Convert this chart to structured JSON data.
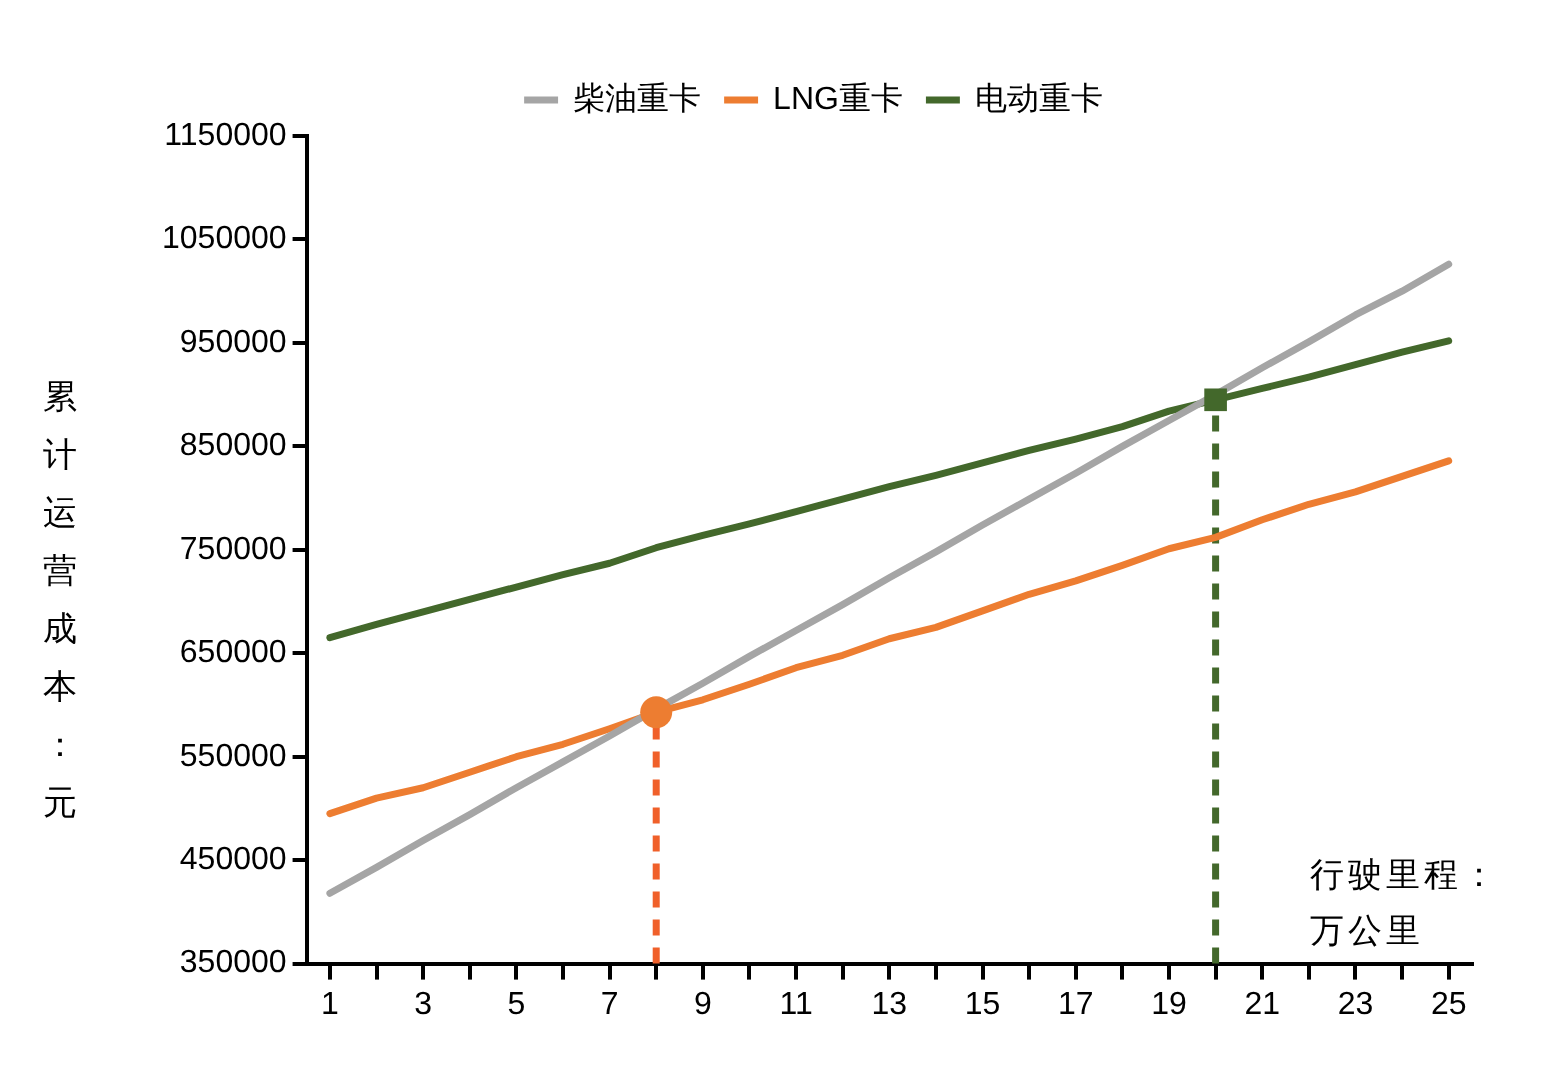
{
  "chart_data": {
    "type": "line",
    "xlabel": "行驶里程：万公里",
    "ylabel": "累计运营成本：元",
    "x": [
      1,
      2,
      3,
      4,
      5,
      6,
      7,
      8,
      9,
      10,
      11,
      12,
      13,
      14,
      15,
      16,
      17,
      18,
      19,
      20,
      21,
      22,
      23,
      24,
      25
    ],
    "series": [
      {
        "name": "柴油重卡",
        "color": "#a5a5a5",
        "values": [
          418000,
          443000,
          469000,
          494000,
          520000,
          545000,
          570000,
          596000,
          621000,
          647000,
          672000,
          697000,
          723000,
          748000,
          774000,
          799000,
          824000,
          850000,
          875000,
          900000,
          926000,
          951000,
          977000,
          1000000,
          1026000
        ]
      },
      {
        "name": "LNG重卡",
        "color": "#ed7d31",
        "values": [
          495000,
          510000,
          520000,
          535000,
          550000,
          562000,
          577000,
          593000,
          605000,
          620000,
          636000,
          648000,
          664000,
          675000,
          691000,
          707000,
          720000,
          735000,
          751000,
          762000,
          779000,
          794000,
          806000,
          821000,
          836000
        ]
      },
      {
        "name": "电动重卡",
        "color": "#43682b",
        "values": [
          665000,
          678000,
          690000,
          702000,
          714000,
          726000,
          737000,
          752000,
          764000,
          775000,
          787000,
          799000,
          811000,
          822000,
          834000,
          846000,
          857000,
          869000,
          884000,
          895000,
          906000,
          917000,
          929000,
          941000,
          952000
        ]
      },
      {
        "type": "scatter",
        "color": "#ed7d31",
        "marker": "circle",
        "x": [
          8
        ],
        "values": [
          593000
        ]
      },
      {
        "type": "scatter",
        "color": "#43682b",
        "marker": "square",
        "x": [
          20
        ],
        "values": [
          895000
        ]
      }
    ],
    "xlim": [
      0.5,
      25.5
    ],
    "xticks": [
      1,
      {
        "value": 2,
        "label": null
      },
      3,
      {
        "value": 4,
        "label": null
      },
      5,
      {
        "value": 6,
        "label": null
      },
      7,
      {
        "value": 8,
        "label": null
      },
      9,
      {
        "value": 10,
        "label": null
      },
      11,
      {
        "value": 12,
        "label": null
      },
      13,
      {
        "value": 14,
        "label": null
      },
      15,
      {
        "value": 16,
        "label": null
      },
      17,
      {
        "value": 18,
        "label": null
      },
      19,
      {
        "value": 20,
        "label": null
      },
      21,
      {
        "value": 22,
        "label": null
      },
      23,
      {
        "value": 24,
        "label": null
      },
      25
    ],
    "ylim": [
      350000,
      1150000
    ],
    "yticks": [
      350000,
      450000,
      550000,
      650000,
      750000,
      850000,
      950000,
      1050000,
      1150000
    ],
    "ref_lines": [
      {
        "axis": "x",
        "value": 8,
        "color": "#f0602a",
        "line_style": "dashed"
      },
      {
        "axis": "x",
        "value": 20,
        "color": "#43682b",
        "line_style": "dashed"
      }
    ],
    "legend": "top",
    "grid": false,
    "marker": "none",
    "line_style": "solid"
  }
}
